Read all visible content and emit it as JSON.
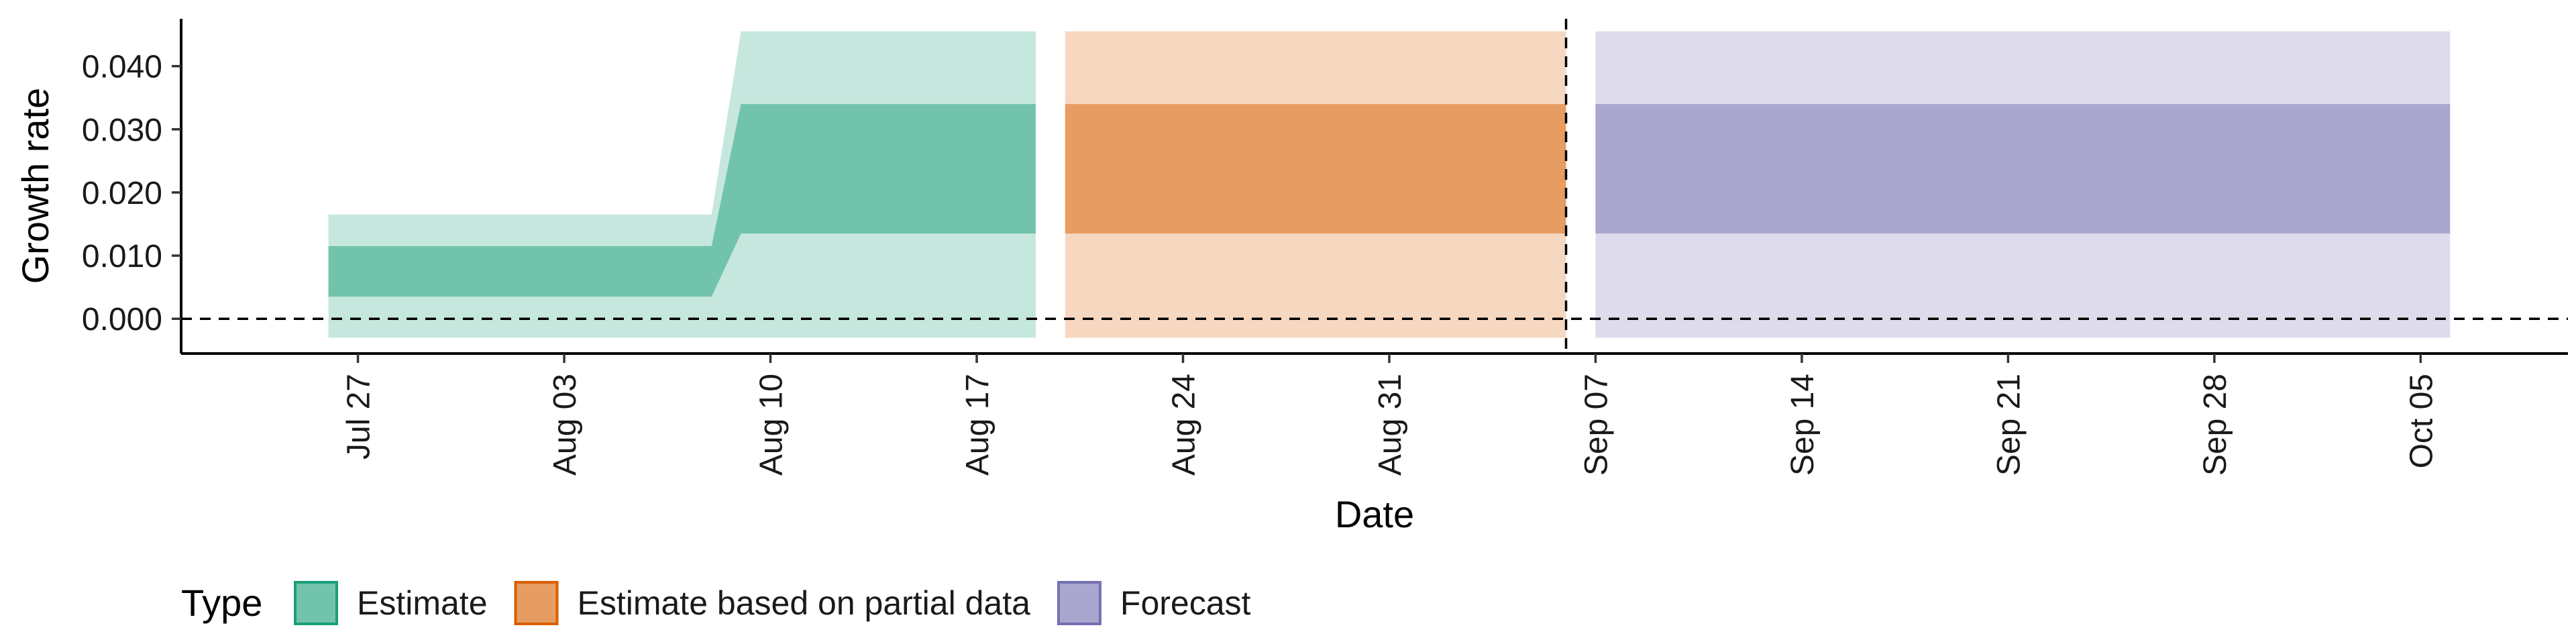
{
  "chart_data": {
    "type": "area",
    "xlabel": "Date",
    "ylabel": "Growth rate",
    "x_type": "date",
    "xlim": [
      "2020-07-21",
      "2020-10-10"
    ],
    "ylim": [
      -0.0055,
      0.0475
    ],
    "x_ticks": [
      {
        "date": "2020-07-27",
        "label": "Jul 27"
      },
      {
        "date": "2020-08-03",
        "label": "Aug 03"
      },
      {
        "date": "2020-08-10",
        "label": "Aug 10"
      },
      {
        "date": "2020-08-17",
        "label": "Aug 17"
      },
      {
        "date": "2020-08-24",
        "label": "Aug 24"
      },
      {
        "date": "2020-08-31",
        "label": "Aug 31"
      },
      {
        "date": "2020-09-07",
        "label": "Sep 07"
      },
      {
        "date": "2020-09-14",
        "label": "Sep 14"
      },
      {
        "date": "2020-09-21",
        "label": "Sep 21"
      },
      {
        "date": "2020-09-28",
        "label": "Sep 28"
      },
      {
        "date": "2020-10-05",
        "label": "Oct 05"
      }
    ],
    "y_ticks": [
      {
        "value": 0.0,
        "label": "0.000"
      },
      {
        "value": 0.01,
        "label": "0.010"
      },
      {
        "value": 0.02,
        "label": "0.020"
      },
      {
        "value": 0.03,
        "label": "0.030"
      },
      {
        "value": 0.04,
        "label": "0.040"
      }
    ],
    "reference_lines": [
      {
        "axis": "y",
        "value": 0.0,
        "style": "dashed"
      },
      {
        "axis": "x",
        "value": "2020-09-06",
        "style": "dashed"
      }
    ],
    "grid": false,
    "legend": {
      "title": "Type",
      "position": "bottom"
    },
    "series": [
      {
        "name": "Estimate",
        "color": "#1b9e77",
        "points": [
          {
            "date": "2020-07-26",
            "lower_90": -0.003,
            "lower_50": 0.0035,
            "upper_50": 0.0115,
            "upper_90": 0.0165
          },
          {
            "date": "2020-08-08",
            "lower_90": -0.003,
            "lower_50": 0.0035,
            "upper_50": 0.0115,
            "upper_90": 0.0165
          },
          {
            "date": "2020-08-09",
            "lower_90": -0.003,
            "lower_50": 0.0135,
            "upper_50": 0.034,
            "upper_90": 0.0455
          },
          {
            "date": "2020-08-19",
            "lower_90": -0.003,
            "lower_50": 0.0135,
            "upper_50": 0.034,
            "upper_90": 0.0455
          }
        ]
      },
      {
        "name": "Estimate based on partial data",
        "color": "#d95f02",
        "points": [
          {
            "date": "2020-08-20",
            "lower_90": -0.003,
            "lower_50": 0.0135,
            "upper_50": 0.034,
            "upper_90": 0.0455
          },
          {
            "date": "2020-09-06",
            "lower_90": -0.003,
            "lower_50": 0.0135,
            "upper_50": 0.034,
            "upper_90": 0.0455
          }
        ]
      },
      {
        "name": "Forecast",
        "color": "#7570b3",
        "points": [
          {
            "date": "2020-09-07",
            "lower_90": -0.003,
            "lower_50": 0.0135,
            "upper_50": 0.034,
            "upper_90": 0.0455
          },
          {
            "date": "2020-10-06",
            "lower_90": -0.003,
            "lower_50": 0.0135,
            "upper_50": 0.034,
            "upper_90": 0.0455
          }
        ]
      }
    ]
  }
}
